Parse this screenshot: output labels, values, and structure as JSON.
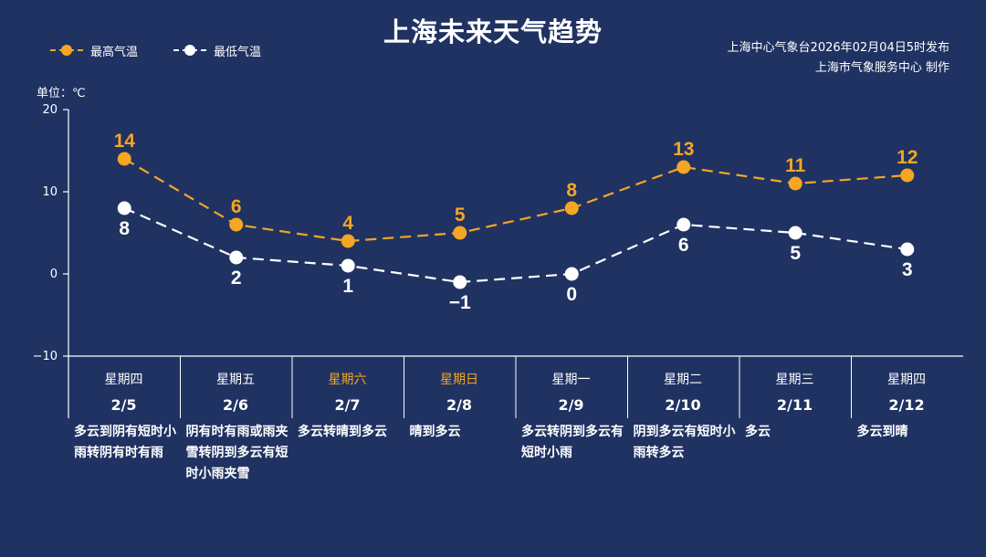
{
  "title": "上海未来天气趋势",
  "legend": {
    "high_label": "最高气温",
    "low_label": "最低气温"
  },
  "source_line1": "上海中心气象台2026年02月04日5时发布",
  "source_line2": "上海市气象服务中心 制作",
  "unit_label": "单位：℃",
  "colors": {
    "background": "#1f3262",
    "high": "#f5a623",
    "low": "#ffffff",
    "weekend": "#f5a623",
    "axis": "#ffffff"
  },
  "days": [
    {
      "weekday": "星期四",
      "date": "2/5",
      "weather": "多云到阴有短时小雨转阴有时有雨",
      "weekend": false
    },
    {
      "weekday": "星期五",
      "date": "2/6",
      "weather": "阴有时有雨或雨夹雪转阴到多云有短时小雨夹雪",
      "weekend": false
    },
    {
      "weekday": "星期六",
      "date": "2/7",
      "weather": "多云转晴到多云",
      "weekend": true
    },
    {
      "weekday": "星期日",
      "date": "2/8",
      "weather": "晴到多云",
      "weekend": true
    },
    {
      "weekday": "星期一",
      "date": "2/9",
      "weather": "多云转阴到多云有短时小雨",
      "weekend": false
    },
    {
      "weekday": "星期二",
      "date": "2/10",
      "weather": "阴到多云有短时小雨转多云",
      "weekend": false
    },
    {
      "weekday": "星期三",
      "date": "2/11",
      "weather": "多云",
      "weekend": false
    },
    {
      "weekday": "星期四",
      "date": "2/12",
      "weather": "多云到晴",
      "weekend": false
    }
  ],
  "chart_data": {
    "type": "line",
    "title": "上海未来天气趋势",
    "ylabel": "单位：℃",
    "categories": [
      "2/5",
      "2/6",
      "2/7",
      "2/8",
      "2/9",
      "2/10",
      "2/11",
      "2/12"
    ],
    "ylim": [
      -10,
      20
    ],
    "yticks": [
      "20",
      "10",
      "0",
      "−10"
    ],
    "grid": false,
    "legend_position": "top-left",
    "series": [
      {
        "name": "最高气温",
        "values": [
          14,
          6,
          4,
          5,
          8,
          13,
          11,
          12
        ],
        "labels": [
          "14",
          "6",
          "4",
          "5",
          "8",
          "13",
          "11",
          "12"
        ],
        "style": "dashed",
        "color": "#f5a623"
      },
      {
        "name": "最低气温",
        "values": [
          8,
          2,
          1,
          -1,
          0,
          6,
          5,
          3
        ],
        "labels": [
          "8",
          "2",
          "1",
          "−1",
          "0",
          "6",
          "5",
          "3"
        ],
        "style": "dashed",
        "color": "#ffffff"
      }
    ]
  }
}
